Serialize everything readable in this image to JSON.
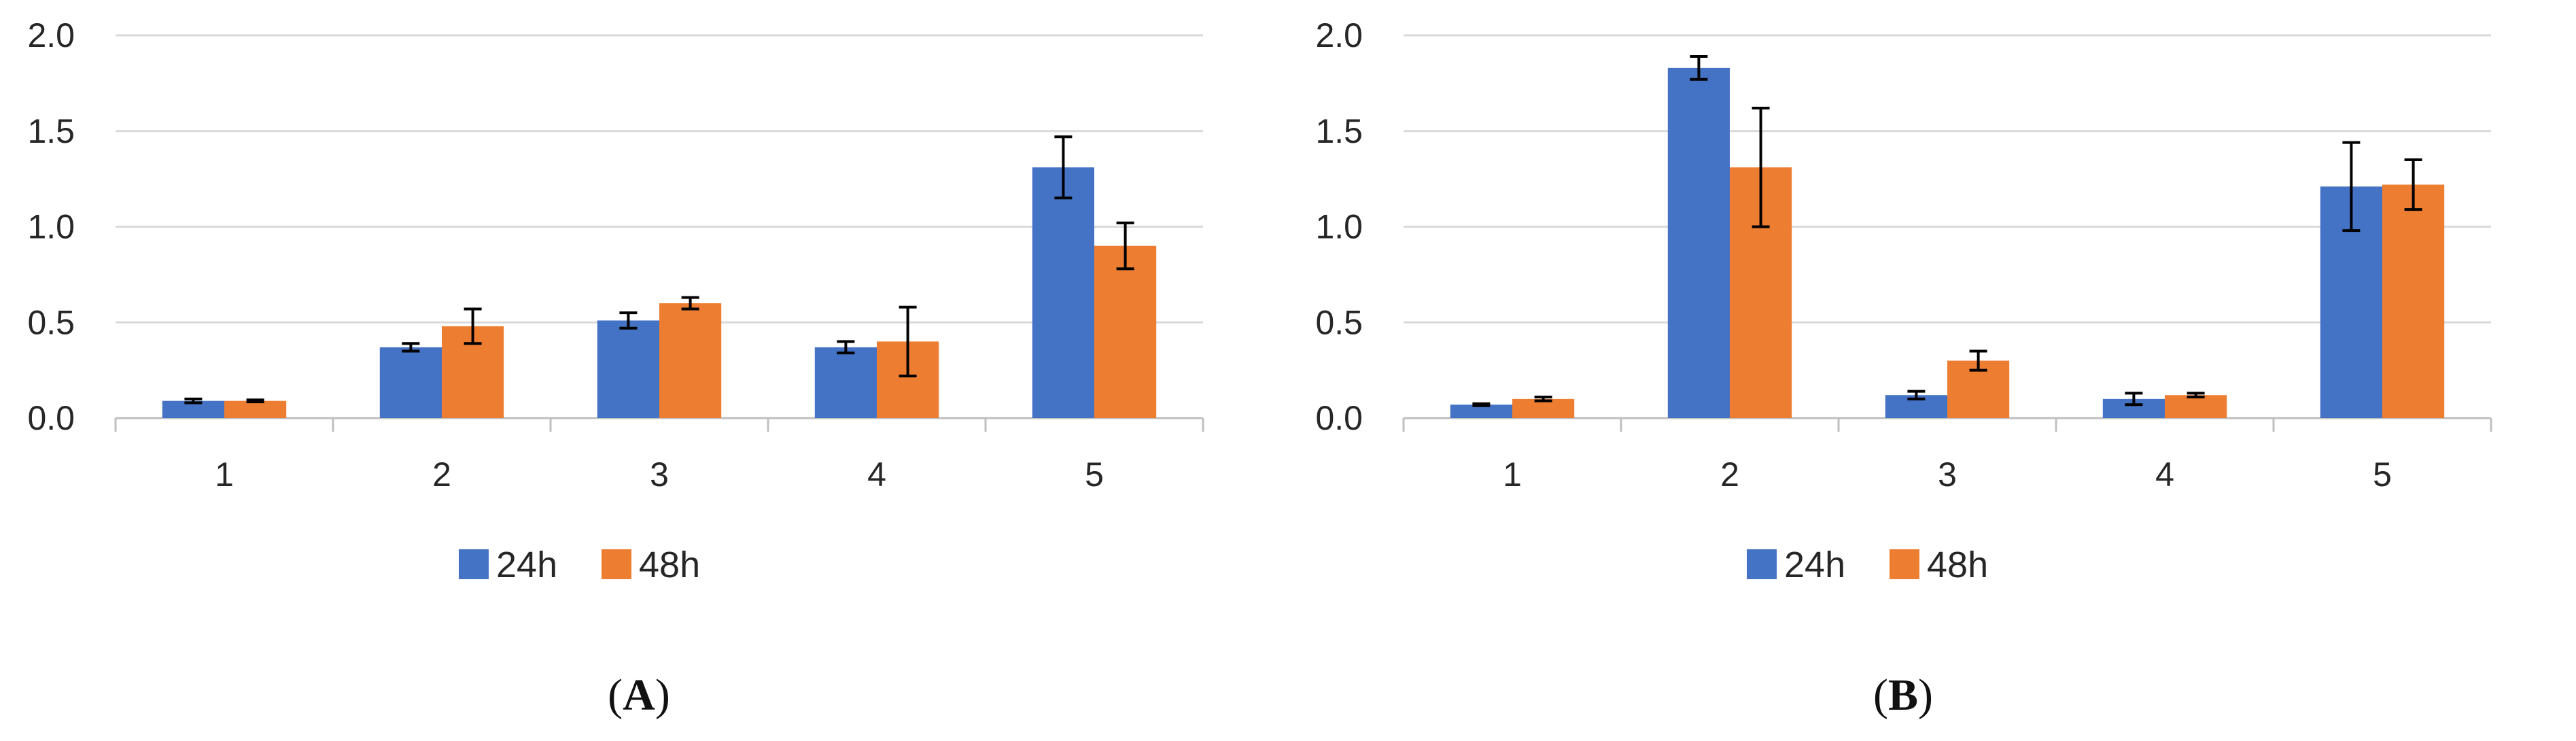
{
  "chart_data": [
    {
      "type": "bar",
      "panel_label": "A",
      "categories": [
        "1",
        "2",
        "3",
        "4",
        "5"
      ],
      "series": [
        {
          "name": "24h",
          "color": "#4472C4",
          "values": [
            0.09,
            0.37,
            0.51,
            0.37,
            1.31
          ],
          "errors": [
            0.01,
            0.02,
            0.04,
            0.03,
            0.16
          ]
        },
        {
          "name": "48h",
          "color": "#ED7D31",
          "values": [
            0.09,
            0.48,
            0.6,
            0.4,
            0.9
          ],
          "errors": [
            0.005,
            0.09,
            0.03,
            0.18,
            0.12
          ]
        }
      ],
      "ylim": [
        0,
        2.0
      ],
      "yticks": [
        "0.0",
        "0.5",
        "1.0",
        "1.5",
        "2.0"
      ],
      "legend": "bottom",
      "grid": true
    },
    {
      "type": "bar",
      "panel_label": "B",
      "categories": [
        "1",
        "2",
        "3",
        "4",
        "5"
      ],
      "series": [
        {
          "name": "24h",
          "color": "#4472C4",
          "values": [
            0.07,
            1.83,
            0.12,
            0.1,
            1.21
          ],
          "errors": [
            0.005,
            0.06,
            0.02,
            0.03,
            0.23
          ]
        },
        {
          "name": "48h",
          "color": "#ED7D31",
          "values": [
            0.1,
            1.31,
            0.3,
            0.12,
            1.22
          ],
          "errors": [
            0.01,
            0.31,
            0.05,
            0.01,
            0.13
          ]
        }
      ],
      "ylim": [
        0,
        2.0
      ],
      "yticks": [
        "0.0",
        "0.5",
        "1.0",
        "1.5",
        "2.0"
      ],
      "legend": "bottom",
      "grid": true
    }
  ]
}
